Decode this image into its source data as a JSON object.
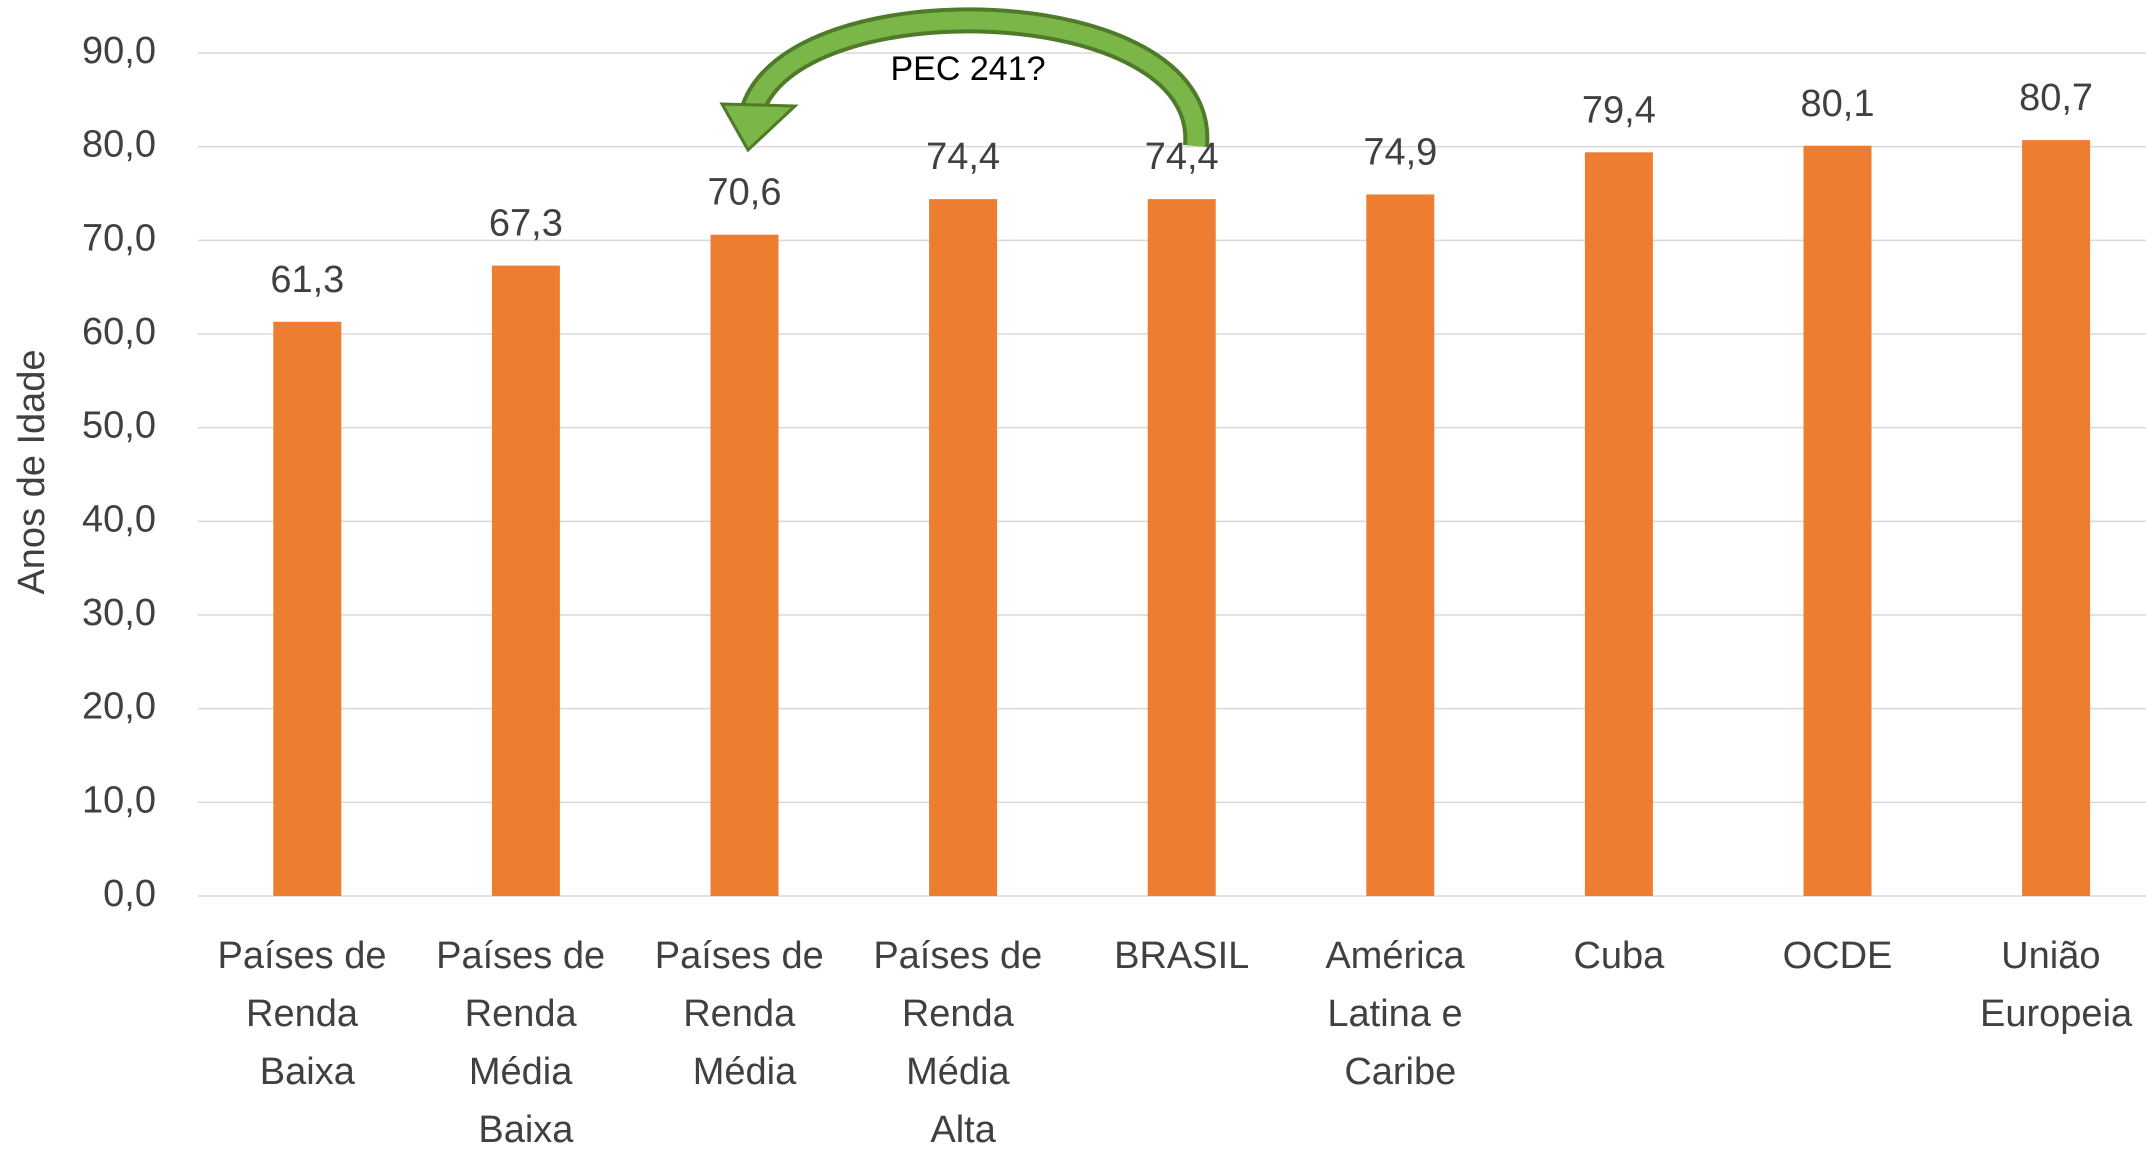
{
  "chart_data": {
    "type": "bar",
    "y_label": "Anos de Idade",
    "annotation": "PEC 241?",
    "categories": [
      "Países de Renda Baixa",
      "Países de Renda Média Baixa",
      "Países de Renda Média",
      "Países de Renda Média Alta",
      "BRASIL",
      "América Latina e Caribe",
      "Cuba",
      "OCDE",
      "União Europeia"
    ],
    "values": [
      61.3,
      67.3,
      70.6,
      74.4,
      74.4,
      74.9,
      79.4,
      80.1,
      80.7
    ],
    "value_labels": [
      "61,3",
      "67,3",
      "70,6",
      "74,4",
      "74,4",
      "74,9",
      "79,4",
      "80,1",
      "80,7"
    ],
    "color": "#ed7d31",
    "ylim": [
      0,
      90
    ],
    "yticks": [
      {
        "value": 0,
        "label": "0,0"
      },
      {
        "value": 10,
        "label": "10,0"
      },
      {
        "value": 20,
        "label": "20,0"
      },
      {
        "value": 30,
        "label": "30,0"
      },
      {
        "value": 40,
        "label": "40,0"
      },
      {
        "value": 50,
        "label": "50,0"
      },
      {
        "value": 60,
        "label": "60,0"
      },
      {
        "value": 70,
        "label": "70,0"
      },
      {
        "value": 80,
        "label": "80,0"
      },
      {
        "value": 90,
        "label": "90,0"
      }
    ],
    "grid": true
  }
}
